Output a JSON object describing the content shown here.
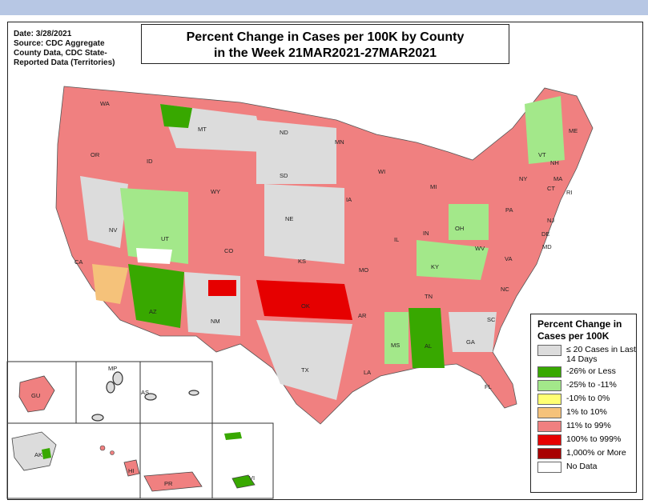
{
  "source": {
    "date": "Date: 3/28/2021",
    "line1": "Source: CDC Aggregate",
    "line2": "County Data, CDC State-",
    "line3": "Reported Data (Territories)"
  },
  "title": {
    "line1": "Percent Change in Cases per 100K by County",
    "line2": "in the Week 21MAR2021-27MAR2021"
  },
  "legend": {
    "title_line1": "Percent Change in",
    "title_line2": "Cases per 100K",
    "items": [
      {
        "label": "≤ 20 Cases in Last 14 Days",
        "color": "#dcdcdc"
      },
      {
        "label": "-26% or Less",
        "color": "#38a800"
      },
      {
        "label": "-25% to -11%",
        "color": "#a3e88a"
      },
      {
        "label": "-10% to 0%",
        "color": "#ffff73"
      },
      {
        "label": "1% to 10%",
        "color": "#f5c27a"
      },
      {
        "label": "11% to 99%",
        "color": "#f08080"
      },
      {
        "label": "100% to 999%",
        "color": "#e60000"
      },
      {
        "label": "1,000% or More",
        "color": "#a80000"
      },
      {
        "label": "No Data",
        "color": "#ffffff"
      }
    ]
  },
  "states": [
    "WA",
    "OR",
    "CA",
    "NV",
    "ID",
    "MT",
    "WY",
    "UT",
    "AZ",
    "NM",
    "CO",
    "ND",
    "SD",
    "NE",
    "KS",
    "OK",
    "TX",
    "MN",
    "IA",
    "MO",
    "AR",
    "LA",
    "WI",
    "IL",
    "MS",
    "AL",
    "MI",
    "IN",
    "KY",
    "TN",
    "OH",
    "GA",
    "FL",
    "SC",
    "NC",
    "VA",
    "WV",
    "PA",
    "NY",
    "VT",
    "NH",
    "ME",
    "MA",
    "CT",
    "RI",
    "NJ",
    "DE",
    "MD"
  ],
  "territories": [
    "GU",
    "MP",
    "AS",
    "AK",
    "HI",
    "PR",
    "VI"
  ]
}
